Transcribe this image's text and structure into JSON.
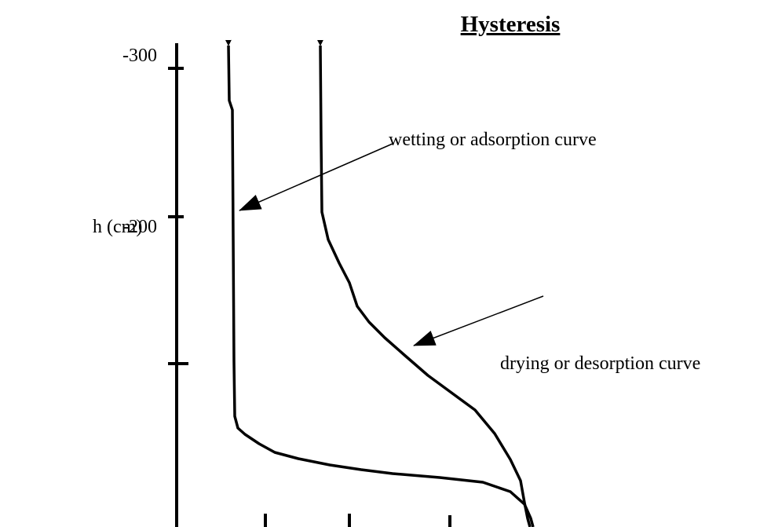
{
  "title": "Hysteresis",
  "y_axis": {
    "label": "h (cm)",
    "ticks": [
      "-300",
      "-200"
    ]
  },
  "annotations": [
    "wetting or adsorption curve",
    "drying or desorption curve"
  ]
}
